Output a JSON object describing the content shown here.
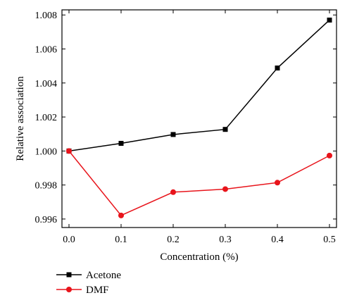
{
  "chart_data": {
    "type": "line",
    "title": "",
    "xlabel": "Concentration (%)",
    "ylabel": "Relative association",
    "xlim": [
      0.0,
      0.5
    ],
    "ylim": [
      0.9955,
      1.0083
    ],
    "x_ticks": [
      "0.0",
      "0.1",
      "0.2",
      "0.3",
      "0.4",
      "0.5"
    ],
    "y_ticks": [
      "0.996",
      "0.998",
      "1.000",
      "1.002",
      "1.004",
      "1.006",
      "1.008"
    ],
    "grid": false,
    "legend_position": "bottom-left, below plot",
    "x": [
      0.0,
      0.1,
      0.2,
      0.3,
      0.4,
      0.5
    ],
    "series": [
      {
        "name": "Acetone",
        "values": [
          1.0,
          1.00045,
          1.00097,
          1.00127,
          1.00488,
          1.0077
        ],
        "color": "#000000",
        "marker": "square"
      },
      {
        "name": "DMF",
        "values": [
          1.0,
          0.99621,
          0.99758,
          0.99776,
          0.99814,
          0.99973
        ],
        "color": "#e8141b",
        "marker": "circle"
      }
    ]
  }
}
